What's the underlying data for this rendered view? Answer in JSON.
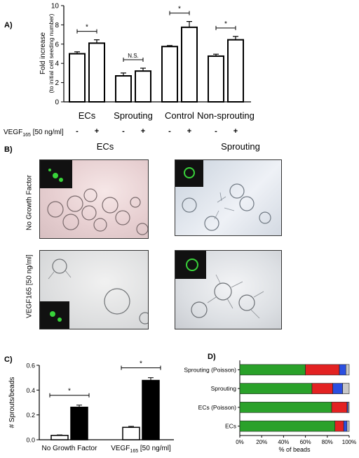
{
  "panels": {
    "a_label": "A)",
    "b_label": "B)",
    "c_label": "C)",
    "d_label": "D)"
  },
  "panel_b": {
    "col1_title": "ECs",
    "col2_title": "Sprouting",
    "row1_label": "No Growth Factor",
    "row2_label": "VEGF165 [50 ng/ml]"
  },
  "colors": {
    "green": "#2aa12a",
    "red": "#e32222",
    "blue": "#2b4fe0",
    "grey": "#c8c8c8"
  },
  "chart_data": [
    {
      "type": "bar",
      "panel": "A",
      "ylabel": "Fold increase",
      "ylabel2": "(to initial cell seeding number)",
      "ylim": [
        0,
        10
      ],
      "yticks": [
        "0",
        "2",
        "4",
        "6",
        "8",
        "10"
      ],
      "groups": [
        "ECs",
        "Sprouting",
        "Control",
        "Non-sprouting"
      ],
      "condition_label": "VEGF165 [50 ng/ml]",
      "pair_signs": [
        "-",
        "+"
      ],
      "values": [
        [
          5.0,
          6.1
        ],
        [
          2.7,
          3.2
        ],
        [
          5.75,
          7.75
        ],
        [
          4.75,
          6.45
        ]
      ],
      "errors": [
        [
          0.2,
          0.35
        ],
        [
          0.3,
          0.3
        ],
        [
          0.1,
          0.6
        ],
        [
          0.2,
          0.35
        ]
      ],
      "significance": [
        "*",
        "N.S.",
        "*",
        "*"
      ]
    },
    {
      "type": "bar",
      "panel": "C",
      "ylabel": "# Sprouts/beads",
      "ylim": [
        0,
        0.6
      ],
      "yticks": [
        "0.0",
        "0.2",
        "0.4",
        "0.6"
      ],
      "groups": [
        "No Growth Factor",
        "VEGF165 [50 ng/ml]"
      ],
      "values": [
        [
          0.035,
          0.262
        ],
        [
          0.1,
          0.478
        ]
      ],
      "errors": [
        [
          0.004,
          0.017
        ],
        [
          0.008,
          0.022
        ]
      ],
      "significance": [
        "*",
        "*"
      ]
    },
    {
      "type": "bar",
      "orientation": "horizontal",
      "stacked": true,
      "panel": "D",
      "categories": [
        "Sprouting (Poisson)",
        "Sprouting",
        "ECs (Poisson)",
        "ECs"
      ],
      "xlabel": "% of beads",
      "xticks": [
        "0%",
        "20%",
        "40%",
        "60%",
        "80%",
        "100%"
      ],
      "xlim": [
        0,
        100
      ],
      "segments": [
        [
          60,
          31,
          6,
          3
        ],
        [
          66,
          19,
          9,
          6
        ],
        [
          84,
          14,
          1,
          1
        ],
        [
          87,
          8,
          3,
          2
        ]
      ]
    }
  ]
}
